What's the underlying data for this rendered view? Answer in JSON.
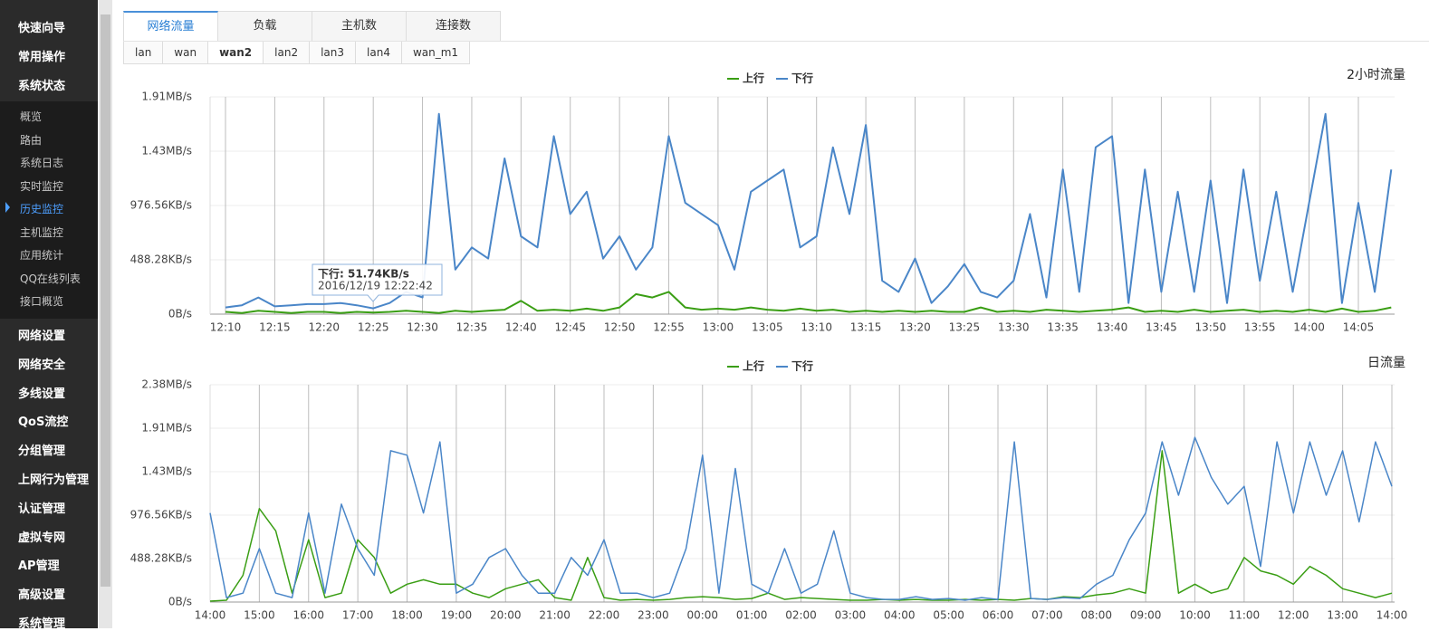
{
  "sidebar": {
    "top": [
      "快速向导",
      "常用操作",
      "系统状态"
    ],
    "submenu": [
      "概览",
      "路由",
      "系统日志",
      "实时监控",
      "历史监控",
      "主机监控",
      "应用统计",
      "QQ在线列表",
      "接口概览"
    ],
    "bottom": [
      "网络设置",
      "网络安全",
      "多线设置",
      "QoS流控",
      "分组管理",
      "上网行为管理",
      "认证管理",
      "虚拟专网",
      "AP管理",
      "高级设置",
      "系统管理"
    ]
  },
  "tabs": [
    "网络流量",
    "负载",
    "主机数",
    "连接数"
  ],
  "subtabs": [
    "lan",
    "wan",
    "wan2",
    "lan2",
    "lan3",
    "lan4",
    "wan_m1"
  ],
  "tooltip": {
    "text": "下行: 51.74KB/s",
    "time": "2016/12/19 12:22:42"
  },
  "chart_data": [
    {
      "type": "line",
      "title": "2小时流量",
      "legend": "top",
      "grid": true,
      "categories": [
        "12:10",
        null,
        null,
        "12:15",
        null,
        null,
        "12:20",
        null,
        null,
        "12:25",
        null,
        null,
        "12:30",
        null,
        null,
        "12:35",
        null,
        null,
        "12:40",
        null,
        null,
        "12:45",
        null,
        null,
        "12:50",
        null,
        null,
        "12:55",
        null,
        null,
        "13:00",
        null,
        null,
        "13:05",
        null,
        null,
        "13:10",
        null,
        null,
        "13:15",
        null,
        null,
        "13:20",
        null,
        null,
        "13:25",
        null,
        null,
        "13:30",
        null,
        null,
        "13:35",
        null,
        null,
        "13:40",
        null,
        null,
        "13:45",
        null,
        null,
        "13:50",
        null,
        null,
        "13:55",
        null,
        null,
        "14:00",
        null,
        null,
        "14:05",
        null,
        null
      ],
      "ylim": [
        0,
        1953.13
      ],
      "yticks": [
        {
          "value": 0,
          "label": "0B/s"
        },
        {
          "value": 488.28,
          "label": "488.28KB/s"
        },
        {
          "value": 976.56,
          "label": "976.56KB/s"
        },
        {
          "value": 1464.84,
          "label": "1.43MB/s"
        },
        {
          "value": 1953.13,
          "label": "1.91MB/s"
        }
      ],
      "series": [
        {
          "name": "上行",
          "color": "#3a9e14",
          "values": [
            20,
            10,
            30,
            20,
            10,
            20,
            20,
            10,
            20,
            15,
            20,
            30,
            20,
            10,
            30,
            20,
            30,
            40,
            120,
            30,
            40,
            30,
            50,
            30,
            60,
            180,
            150,
            200,
            60,
            40,
            50,
            40,
            60,
            40,
            30,
            50,
            30,
            40,
            20,
            30,
            20,
            30,
            20,
            30,
            20,
            20,
            60,
            20,
            30,
            20,
            40,
            30,
            20,
            30,
            40,
            60,
            20,
            30,
            20,
            40,
            20,
            30,
            40,
            20,
            30,
            20,
            40,
            20,
            50,
            20,
            30,
            60
          ]
        },
        {
          "name": "下行",
          "color": "#4a86c8",
          "values": [
            60,
            80,
            150,
            70,
            80,
            90,
            90,
            100,
            80,
            52,
            100,
            200,
            150,
            1800,
            400,
            600,
            500,
            1400,
            700,
            600,
            1600,
            900,
            1100,
            500,
            700,
            400,
            600,
            1600,
            1000,
            900,
            800,
            400,
            1100,
            1200,
            1300,
            600,
            700,
            1500,
            900,
            1700,
            300,
            200,
            500,
            100,
            250,
            450,
            200,
            150,
            300,
            900,
            150,
            1300,
            200,
            1500,
            1600,
            100,
            1300,
            200,
            1100,
            200,
            1200,
            100,
            1300,
            300,
            1100,
            200,
            1000,
            1800,
            100,
            1000,
            200,
            1300
          ]
        }
      ]
    },
    {
      "type": "line",
      "title": "日流量",
      "legend": "top",
      "grid": true,
      "categories": [
        "14:00",
        null,
        null,
        "15:00",
        null,
        null,
        "16:00",
        null,
        null,
        "17:00",
        null,
        null,
        "18:00",
        null,
        null,
        "19:00",
        null,
        null,
        "20:00",
        null,
        null,
        "21:00",
        null,
        null,
        "22:00",
        null,
        null,
        "23:00",
        null,
        null,
        "00:00",
        null,
        null,
        "01:00",
        null,
        null,
        "02:00",
        null,
        null,
        "03:00",
        null,
        null,
        "04:00",
        null,
        null,
        "05:00",
        null,
        null,
        "06:00",
        null,
        null,
        "07:00",
        null,
        null,
        "08:00",
        null,
        null,
        "09:00",
        null,
        null,
        "10:00",
        null,
        null,
        "11:00",
        null,
        null,
        "12:00",
        null,
        null,
        "13:00",
        null,
        null,
        "14:00"
      ],
      "ylim": [
        0,
        2441.41
      ],
      "yticks": [
        {
          "value": 0,
          "label": "0B/s"
        },
        {
          "value": 488.28,
          "label": "488.28KB/s"
        },
        {
          "value": 976.56,
          "label": "976.56KB/s"
        },
        {
          "value": 1464.84,
          "label": "1.43MB/s"
        },
        {
          "value": 1953.13,
          "label": "1.91MB/s"
        },
        {
          "value": 2441.41,
          "label": "2.38MB/s"
        }
      ],
      "series": [
        {
          "name": "上行",
          "color": "#3a9e14",
          "values": [
            10,
            20,
            300,
            1050,
            800,
            100,
            700,
            50,
            100,
            700,
            500,
            100,
            200,
            250,
            200,
            200,
            100,
            50,
            150,
            200,
            250,
            50,
            20,
            500,
            50,
            20,
            30,
            20,
            30,
            50,
            60,
            50,
            30,
            40,
            100,
            30,
            50,
            40,
            30,
            20,
            20,
            30,
            20,
            30,
            20,
            20,
            30,
            20,
            30,
            20,
            40,
            30,
            60,
            50,
            80,
            100,
            150,
            100,
            1700,
            100,
            200,
            100,
            150,
            500,
            350,
            300,
            200,
            400,
            300,
            150,
            100,
            50,
            100
          ]
        },
        {
          "name": "下行",
          "color": "#4a86c8",
          "values": [
            1000,
            50,
            100,
            600,
            100,
            50,
            1000,
            100,
            1100,
            600,
            300,
            1700,
            1650,
            1000,
            1800,
            100,
            200,
            500,
            600,
            300,
            100,
            100,
            500,
            300,
            700,
            100,
            100,
            50,
            100,
            600,
            1650,
            100,
            1500,
            200,
            100,
            600,
            100,
            200,
            800,
            100,
            50,
            30,
            30,
            60,
            30,
            40,
            20,
            50,
            30,
            1800,
            40,
            30,
            50,
            40,
            200,
            300,
            700,
            1000,
            1800,
            1200,
            1850,
            1400,
            1100,
            1300,
            400,
            1800,
            1000,
            1800,
            1200,
            1700,
            900,
            1800,
            1300
          ]
        }
      ]
    }
  ]
}
